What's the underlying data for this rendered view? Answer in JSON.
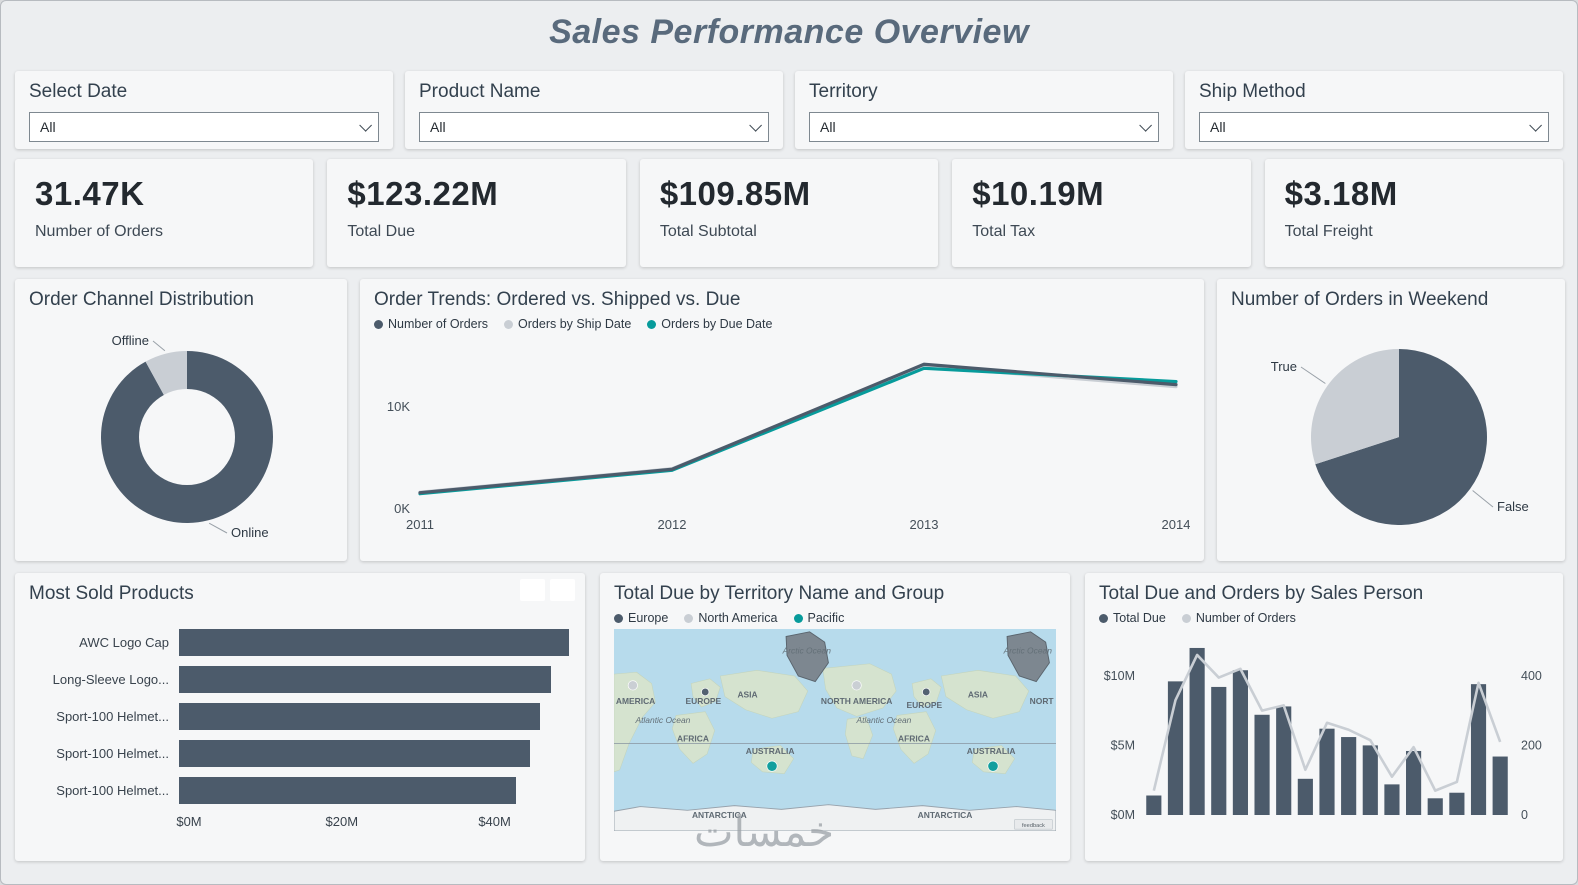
{
  "title": "Sales Performance Overview",
  "watermark": "خمسات",
  "filters": [
    {
      "label": "Select Date",
      "value": "All"
    },
    {
      "label": "Product Name",
      "value": "All"
    },
    {
      "label": "Territory",
      "value": "All"
    },
    {
      "label": "Ship Method",
      "value": "All"
    }
  ],
  "kpis": [
    {
      "value": "31.47K",
      "label": "Number of Orders"
    },
    {
      "value": "$123.22M",
      "label": "Total Due"
    },
    {
      "value": "$109.85M",
      "label": "Total Subtotal"
    },
    {
      "value": "$10.19M",
      "label": "Total Tax"
    },
    {
      "value": "$3.18M",
      "label": "Total Freight"
    }
  ],
  "colors": {
    "dark": "#4c5b6b",
    "light_gray": "#c9ced4",
    "teal": "#079b9b",
    "ocean": "#b7dbec",
    "panel": "#f6f7f8"
  },
  "chart_data": [
    {
      "type": "pie",
      "subtype": "donut",
      "title": "Order Channel Distribution",
      "labels": [
        "Online",
        "Offline"
      ],
      "values": [
        92,
        8
      ],
      "colors": [
        "#4c5b6b",
        "#c9ced4"
      ]
    },
    {
      "type": "line",
      "title": "Order Trends: Ordered vs. Shipped vs. Due",
      "x": [
        "2011",
        "2012",
        "2013",
        "2014"
      ],
      "ylim": [
        0,
        15500
      ],
      "yticks": [
        {
          "v": 0,
          "label": "0K"
        },
        {
          "v": 10000,
          "label": "10K"
        }
      ],
      "series": [
        {
          "name": "Number of Orders",
          "color": "#4c5b6b",
          "values": [
            1600,
            3900,
            14200,
            12200
          ]
        },
        {
          "name": "Orders by Ship Date",
          "color": "#c9ced4",
          "values": [
            1650,
            3950,
            14000,
            12000
          ]
        },
        {
          "name": "Orders by Due Date",
          "color": "#079b9b",
          "values": [
            1500,
            3800,
            13800,
            12500
          ]
        }
      ],
      "legend_position": "top-left",
      "grid": false
    },
    {
      "type": "pie",
      "title": "Number of Orders in Weekend",
      "labels": [
        "False",
        "True"
      ],
      "values": [
        70,
        30
      ],
      "colors": [
        "#4c5b6b",
        "#c9ced4"
      ]
    },
    {
      "type": "bar",
      "orientation": "horizontal",
      "title": "Most Sold Products",
      "categories": [
        "AWC Logo Cap",
        "Long-Sleeve Logo...",
        "Sport-100 Helmet...",
        "Sport-100 Helmet...",
        "Sport-100 Helmet..."
      ],
      "values": [
        49.8,
        47.5,
        46.0,
        44.8,
        43.0
      ],
      "value_unit": "$M",
      "xlim": [
        0,
        50
      ],
      "xticks": [
        {
          "v": 0,
          "label": "$0M"
        },
        {
          "v": 20,
          "label": "$20M"
        },
        {
          "v": 40,
          "label": "$40M"
        }
      ],
      "color": "#4c5b6b"
    },
    {
      "type": "map",
      "title": "Total Due by Territory Name and Group",
      "legend": [
        {
          "name": "Europe",
          "color": "#4c5b6b"
        },
        {
          "name": "North America",
          "color": "#c9ced4"
        },
        {
          "name": "Pacific",
          "color": "#079b9b"
        }
      ],
      "map_labels": [
        "Arctic Ocean",
        "AMERICA",
        "NORTH AMERICA",
        "EUROPE",
        "ASIA",
        "Atlantic Ocean",
        "AFRICA",
        "AUSTRALIA",
        "ANTARCTICA",
        "NORT",
        "feedback"
      ],
      "bubbles": [
        {
          "region": "North America",
          "group": "North America"
        },
        {
          "region": "Europe",
          "group": "Europe"
        },
        {
          "region": "Australia",
          "group": "Pacific"
        }
      ]
    },
    {
      "type": "combo",
      "title": "Total Due and Orders by Sales Person",
      "bars": {
        "name": "Total Due",
        "color": "#4c5b6b",
        "values": [
          1.4,
          9.6,
          12.0,
          9.2,
          10.4,
          7.2,
          7.8,
          2.6,
          6.2,
          5.6,
          5.0,
          2.2,
          4.6,
          1.2,
          1.6,
          9.4,
          4.2
        ]
      },
      "line": {
        "name": "Number of Orders",
        "color": "#c9ced4",
        "values": [
          70,
          330,
          460,
          395,
          420,
          300,
          315,
          130,
          265,
          245,
          215,
          110,
          195,
          70,
          95,
          380,
          210
        ]
      },
      "left_axis": {
        "lim": [
          0,
          12.5
        ],
        "ticks": [
          {
            "v": 0,
            "label": "$0M"
          },
          {
            "v": 5,
            "label": "$5M"
          },
          {
            "v": 10,
            "label": "$10M"
          }
        ]
      },
      "right_axis": {
        "lim": [
          0,
          500
        ],
        "ticks": [
          {
            "v": 0,
            "label": "0"
          },
          {
            "v": 200,
            "label": "200"
          },
          {
            "v": 400,
            "label": "400"
          }
        ]
      }
    }
  ]
}
